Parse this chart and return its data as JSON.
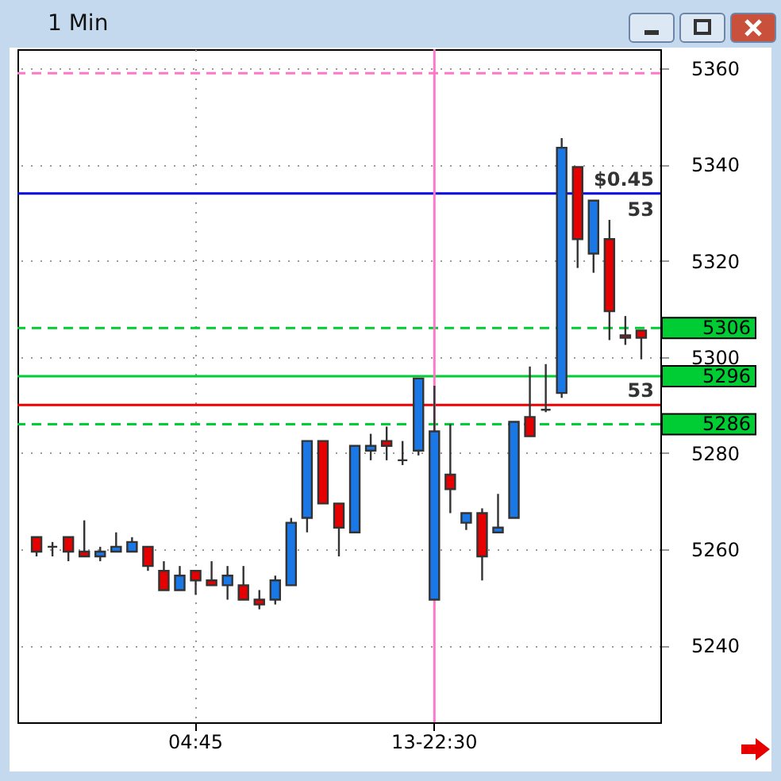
{
  "chart_data": {
    "type": "candlestick",
    "title": "1 Min",
    "categories": [
      null,
      null,
      null,
      null,
      null,
      null,
      null,
      null,
      null,
      null,
      "04:45",
      null,
      null,
      null,
      null,
      null,
      null,
      null,
      null,
      null,
      null,
      null,
      null,
      null,
      null,
      "13-22:30",
      null,
      null,
      null,
      null,
      null,
      null,
      null,
      null,
      null,
      null,
      null,
      null,
      null
    ],
    "ohlc": [
      [
        5262.5,
        5262.5,
        5258.5,
        5259.5
      ],
      [
        5260.5,
        5261.5,
        5258.5,
        5260.5
      ],
      [
        5262.5,
        5262.5,
        5257.5,
        5259.5
      ],
      [
        5259.5,
        5266,
        5258.5,
        5258.5
      ],
      [
        5258.5,
        5260.5,
        5257.5,
        5259.5
      ],
      [
        5259.5,
        5263.5,
        5259.5,
        5260.5
      ],
      [
        5259.5,
        5262.5,
        5259.5,
        5261.5
      ],
      [
        5260.5,
        5260.5,
        5255.5,
        5256.5
      ],
      [
        5255.5,
        5257.5,
        5251.5,
        5251.5
      ],
      [
        5251.5,
        5256.5,
        5251.5,
        5254.5
      ],
      [
        5255.5,
        5255.5,
        5250.5,
        5253.5
      ],
      [
        5253.5,
        5257.5,
        5252.5,
        5252.5
      ],
      [
        5252.5,
        5256.5,
        5249.5,
        5254.5
      ],
      [
        5252.5,
        5256.5,
        5249.5,
        5249.5
      ],
      [
        5249.5,
        5251.5,
        5247.5,
        5248.5
      ],
      [
        5249.5,
        5254.5,
        5248.5,
        5253.5
      ],
      [
        5252.5,
        5266.5,
        5252.5,
        5265.5
      ],
      [
        5266.5,
        5282.5,
        5263.5,
        5282.5
      ],
      [
        5282.5,
        5282.5,
        5269.5,
        5269.5
      ],
      [
        5269.5,
        5269.5,
        5258.5,
        5264.5
      ],
      [
        5263.5,
        5281.5,
        5263.5,
        5281.5
      ],
      [
        5280.5,
        5284,
        5278.5,
        5281.5
      ],
      [
        5282.5,
        5285.5,
        5278.5,
        5281.5
      ],
      [
        5278.5,
        5282.5,
        5277.5,
        5278.5
      ],
      [
        5280.5,
        5295.5,
        5279.5,
        5295.5
      ],
      [
        5249.5,
        5294,
        5249.5,
        5284.5
      ],
      [
        5275.5,
        5286,
        5267.5,
        5272.5
      ],
      [
        5265.5,
        5267.5,
        5264,
        5267.5
      ],
      [
        5267.5,
        5268.5,
        5253.5,
        5258.5
      ],
      [
        5263.5,
        5271.5,
        5263.5,
        5264.5
      ],
      [
        5266.5,
        5286.5,
        5266.5,
        5286.5
      ],
      [
        5287.5,
        5298,
        5283.5,
        5283.5
      ],
      [
        5289,
        5298.5,
        5288.5,
        5289
      ],
      [
        5292.5,
        5345.5,
        5291.5,
        5343.5
      ],
      [
        5339.5,
        5339.5,
        5318.5,
        5324.5
      ],
      [
        5321.5,
        5332.5,
        5317.5,
        5332.5
      ],
      [
        5324.5,
        5328.5,
        5303.5,
        5309.5
      ],
      [
        5304.5,
        5308.5,
        5302.5,
        5304
      ],
      [
        5305.5,
        5305.5,
        5299.5,
        5304
      ]
    ],
    "colors": [
      "#e60000",
      "#333333",
      "#e60000",
      "#e60000",
      "#1a78e6",
      "#1a78e6",
      "#1a78e6",
      "#e60000",
      "#e60000",
      "#1a78e6",
      "#e60000",
      "#e60000",
      "#1a78e6",
      "#e60000",
      "#e60000",
      "#1a78e6",
      "#1a78e6",
      "#1a78e6",
      "#e60000",
      "#e60000",
      "#1a78e6",
      "#1a78e6",
      "#e60000",
      "#333333",
      "#1a78e6",
      "#1a78e6",
      "#e60000",
      "#1a78e6",
      "#e60000",
      "#1a78e6",
      "#1a78e6",
      "#e60000",
      "#333333",
      "#1a78e6",
      "#e60000",
      "#1a78e6",
      "#e60000",
      "#e60000",
      "#e60000"
    ],
    "ylim": [
      5224,
      5364
    ],
    "yticks": [
      5240,
      5260,
      5280,
      5300,
      5320,
      5340,
      5360
    ],
    "grid": true,
    "ref_lines": [
      {
        "axis": "y",
        "value": 5306,
        "label": "5306",
        "color": "#00cc33",
        "line_style": "dashed"
      },
      {
        "axis": "y",
        "value": 5296,
        "label": "5296",
        "color": "#00cc33",
        "line_style": "solid"
      },
      {
        "axis": "y",
        "value": 5286,
        "label": "5286",
        "color": "#00cc33",
        "line_style": "dashed"
      },
      {
        "axis": "y",
        "value": 5334,
        "color": "#0000e6",
        "line_style": "solid"
      },
      {
        "axis": "y",
        "value": 5290,
        "color": "#ee0000",
        "line_style": "solid"
      },
      {
        "axis": "y",
        "value": 5359,
        "color": "#ff77c8",
        "line_style": "dashed"
      },
      {
        "axis": "x",
        "value": "13-22:30",
        "color": "#ff77c8",
        "line_style": "solid"
      }
    ],
    "annotations": [
      {
        "text": "$0.45",
        "y": 5334
      },
      {
        "text": "53",
        "y": 5334
      },
      {
        "text": "53",
        "y": 5290
      }
    ]
  }
}
